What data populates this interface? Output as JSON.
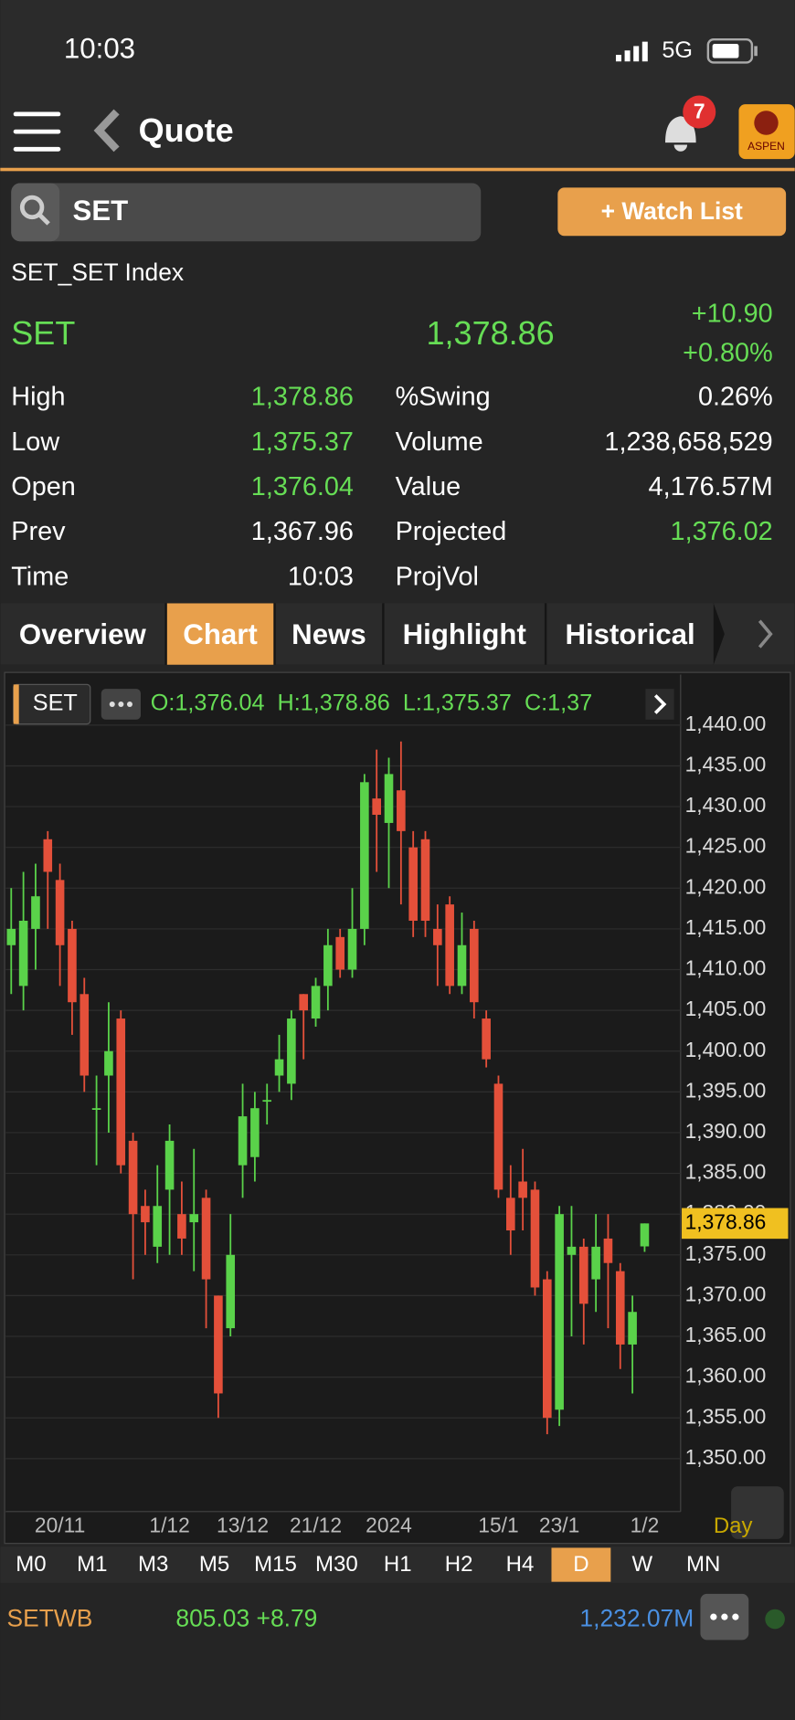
{
  "status_bar": {
    "time": "10:03",
    "network": "5G"
  },
  "header": {
    "title": "Quote",
    "badge": "7",
    "logo": "ASPEN"
  },
  "search": {
    "query": "SET",
    "watch_list": "+ Watch List"
  },
  "quote": {
    "name": "SET_SET Index",
    "symbol": "SET",
    "last": "1,378.86",
    "change": "+10.90",
    "change_pct": "+0.80%",
    "stats": [
      [
        "High",
        "1,378.86",
        "%Swing",
        "0.26%"
      ],
      [
        "Low",
        "1,375.37",
        "Volume",
        "1,238,658,529"
      ],
      [
        "Open",
        "1,376.04",
        "Value",
        "4,176.57M"
      ],
      [
        "Prev",
        "1,367.96",
        "Projected",
        "1,376.02"
      ],
      [
        "Time",
        "10:03",
        "ProjVol"
      ]
    ]
  },
  "tabs": [
    "Overview",
    "Chart",
    "News",
    "Highlight",
    "Historical"
  ],
  "active_tab": "Chart",
  "chart_header": {
    "symbol": "SET",
    "ohlc": "O:1,376.04  H:1,378.86  L:1,375.37  C:1,37"
  },
  "chart_data": {
    "type": "candlestick",
    "up_color": "#5ad24a",
    "down_color": "#e4503a",
    "categories": [
      null,
      null,
      null,
      null,
      "20/11",
      null,
      null,
      null,
      null,
      null,
      null,
      null,
      null,
      "1/12",
      null,
      null,
      null,
      null,
      null,
      "13/12",
      null,
      null,
      null,
      null,
      null,
      "21/12",
      null,
      null,
      null,
      null,
      null,
      "2024",
      null,
      null,
      null,
      null,
      null,
      null,
      null,
      null,
      "15/1",
      null,
      null,
      null,
      null,
      "23/1",
      null,
      null,
      null,
      null,
      null,
      null,
      "1/2"
    ],
    "open": [
      1413,
      1408,
      1415,
      1426,
      1421,
      1415,
      1407,
      1393,
      1397,
      1404,
      1389,
      1381,
      1376,
      1383,
      1380,
      1379,
      1382,
      1370,
      1366,
      1386,
      1387,
      1394,
      1397,
      1396,
      1407,
      1404,
      1408,
      1414,
      1410,
      1415,
      1431,
      1428,
      1432,
      1425,
      1426,
      1415,
      1418,
      1408,
      1415,
      1404,
      1396,
      1382,
      1384,
      1383,
      1372,
      1356,
      1375,
      1376,
      1372,
      1377,
      1373,
      1364,
      1376.04
    ],
    "high": [
      1420,
      1422,
      1423,
      1427,
      1423,
      1416,
      1409,
      1397,
      1406,
      1405,
      1390,
      1383,
      1386,
      1391,
      1384,
      1388,
      1383,
      1370,
      1380,
      1396,
      1395,
      1396,
      1402,
      1405,
      1407,
      1409,
      1415,
      1415,
      1420,
      1434,
      1437,
      1436,
      1438,
      1427,
      1427,
      1418,
      1419,
      1417,
      1416,
      1405,
      1397,
      1386,
      1388,
      1384,
      1373,
      1381,
      1381,
      1377,
      1380,
      1380,
      1374,
      1370,
      1378.86
    ],
    "low": [
      1407,
      1405,
      1410,
      1415,
      1408,
      1402,
      1395,
      1386,
      1390,
      1385,
      1372,
      1375,
      1374,
      1375,
      1375,
      1373,
      1366,
      1355,
      1365,
      1382,
      1384,
      1391,
      1395,
      1394,
      1399,
      1403,
      1405,
      1409,
      1409,
      1413,
      1422,
      1420,
      1418,
      1414,
      1414,
      1408,
      1407,
      1407,
      1404,
      1398,
      1382,
      1375,
      1378,
      1370,
      1353,
      1354,
      1365,
      1364,
      1368,
      1366,
      1361,
      1358,
      1375.37
    ],
    "close": [
      1415,
      1416,
      1419,
      1422,
      1413,
      1406,
      1397,
      1393,
      1400,
      1386,
      1380,
      1379,
      1381,
      1389,
      1377,
      1380,
      1372,
      1358,
      1375,
      1392,
      1393,
      1394,
      1399,
      1404,
      1405,
      1408,
      1413,
      1410,
      1415,
      1433,
      1429,
      1434,
      1427,
      1416,
      1416,
      1413,
      1408,
      1413,
      1406,
      1399,
      1383,
      1378,
      1382,
      1371,
      1355,
      1380,
      1376,
      1369,
      1376,
      1374,
      1364,
      1368,
      1378.86
    ],
    "ylim": [
      1343.5,
      1446.2
    ],
    "yticks": [
      {
        "value": 1350,
        "label": "1,350.00"
      },
      {
        "value": 1355,
        "label": "1,355.00"
      },
      {
        "value": 1360,
        "label": "1,360.00"
      },
      {
        "value": 1365,
        "label": "1,365.00"
      },
      {
        "value": 1370,
        "label": "1,370.00"
      },
      {
        "value": 1375,
        "label": "1,375.00"
      },
      {
        "value": 1380,
        "label": "1,380.00"
      },
      {
        "value": 1385,
        "label": "1,385.00"
      },
      {
        "value": 1390,
        "label": "1,390.00"
      },
      {
        "value": 1395,
        "label": "1,395.00"
      },
      {
        "value": 1400,
        "label": "1,400.00"
      },
      {
        "value": 1405,
        "label": "1,405.00"
      },
      {
        "value": 1410,
        "label": "1,410.00"
      },
      {
        "value": 1415,
        "label": "1,415.00"
      },
      {
        "value": 1420,
        "label": "1,420.00"
      },
      {
        "value": 1425,
        "label": "1,425.00"
      },
      {
        "value": 1430,
        "label": "1,430.00"
      },
      {
        "value": 1435,
        "label": "1,435.00"
      },
      {
        "value": 1440,
        "label": "1,440.00"
      }
    ],
    "last_price": {
      "value": 1378.86,
      "label": "1,378.86"
    },
    "period": "Day",
    "grid": true
  },
  "timeframes": [
    "M0",
    "M1",
    "M3",
    "M5",
    "M15",
    "M30",
    "H1",
    "H2",
    "H4",
    "D",
    "W",
    "MN"
  ],
  "active_timeframe": "D",
  "ticker": {
    "symbol": "SETWB",
    "price": "805.03 +8.79",
    "value": "1,232.07M"
  }
}
